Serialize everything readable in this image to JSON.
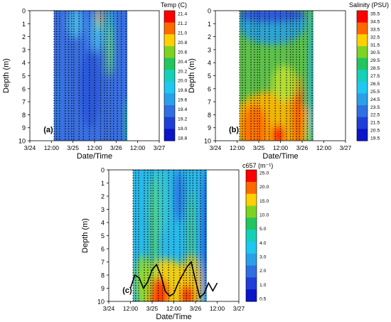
{
  "chart_data": [
    {
      "type": "heatmap",
      "panel_label": "(a)",
      "xlabel": "Date/Time",
      "ylabel": "Depth (m)",
      "x_ticks": [
        "3/24",
        "12:00",
        "3/25",
        "12:00",
        "3/26",
        "12:00",
        "3/27"
      ],
      "y_ticks": [
        "0",
        "1",
        "2",
        "3",
        "4",
        "5",
        "6",
        "7",
        "8",
        "9",
        "10"
      ],
      "ylim": [
        10,
        0
      ],
      "colorbar": {
        "title": "Temp (C)",
        "ticks": [
          "21.4",
          "21.2",
          "21.0",
          "20.8",
          "20.6",
          "20.4",
          "20.2",
          "20.0",
          "19.8",
          "19.6",
          "19.4",
          "19.2",
          "19.0",
          "18.8"
        ],
        "colors": [
          "#ff0000",
          "#ff6a00",
          "#ffd000",
          "#7ed321",
          "#22c55e",
          "#15d0b8",
          "#1ec8f0",
          "#2aa0ea",
          "#2f6fe0",
          "#1f3fd8",
          "#0a14c8"
        ]
      },
      "field": {
        "base_color": "#3a6fe0",
        "patches": [
          {
            "day": 1.55,
            "depth": 1.6,
            "rx": 0.16,
            "ry": 1.6,
            "color": "#45b4e8"
          },
          {
            "day": 1.62,
            "depth": 0.6,
            "rx": 0.07,
            "ry": 0.9,
            "color": "#9be06a"
          },
          {
            "day": 1.62,
            "depth": 0.4,
            "rx": 0.035,
            "ry": 0.5,
            "color": "#ff3a00"
          },
          {
            "day": 1.85,
            "depth": 2.4,
            "rx": 0.1,
            "ry": 2.6,
            "color": "#2fd0c0"
          },
          {
            "day": 1.85,
            "depth": 3.2,
            "rx": 0.05,
            "ry": 2.0,
            "color": "#7ed85a"
          },
          {
            "day": 1.05,
            "depth": 1.0,
            "rx": 0.18,
            "ry": 1.2,
            "color": "#4ab8ea"
          },
          {
            "day": 2.3,
            "depth": 8.8,
            "rx": 0.08,
            "ry": 2.2,
            "color": "#22c080"
          },
          {
            "day": 0.62,
            "depth": 7.0,
            "rx": 0.08,
            "ry": 2.6,
            "color": "#2f7fe0"
          },
          {
            "day": 1.4,
            "depth": 6.0,
            "rx": 0.25,
            "ry": 3.0,
            "color": "#2a55d8"
          }
        ],
        "samples": [
          0.56,
          0.62,
          0.69,
          0.82,
          0.9,
          0.97,
          1.02,
          1.14,
          1.24,
          1.38,
          1.5,
          1.64,
          1.73,
          1.79,
          1.87,
          1.94,
          2.03,
          2.12,
          2.23
        ]
      }
    },
    {
      "type": "heatmap",
      "panel_label": "(b)",
      "xlabel": "Date/Time",
      "ylabel": "Depth (m)",
      "x_ticks": [
        "3/24",
        "12:00",
        "3/25",
        "12:00",
        "3/26",
        "12:00",
        "3/27"
      ],
      "y_ticks": [
        "0",
        "1",
        "2",
        "3",
        "4",
        "5",
        "6",
        "7",
        "8",
        "9",
        "10"
      ],
      "ylim": [
        10,
        0
      ],
      "colorbar": {
        "title": "Salinity (PSU)",
        "ticks": [
          "35.5",
          "34.5",
          "33.5",
          "32.5",
          "31.5",
          "30.5",
          "29.5",
          "28.5",
          "27.5",
          "26.5",
          "25.5",
          "24.5",
          "23.5",
          "22.5",
          "21.5",
          "20.5",
          "19.5"
        ],
        "colors": [
          "#ff0000",
          "#ff6a00",
          "#ffd000",
          "#7ed321",
          "#22c55e",
          "#15d0b8",
          "#1ec8f0",
          "#2aa0ea",
          "#2f6fe0",
          "#1f3fd8",
          "#0a14c8"
        ]
      },
      "field": {
        "base_color": "#5ec04a",
        "patches": [
          {
            "day": 1.3,
            "depth": 1.0,
            "rx": 0.8,
            "ry": 1.6,
            "color": "#2aa0e0"
          },
          {
            "day": 1.3,
            "depth": 0.3,
            "rx": 0.8,
            "ry": 0.6,
            "color": "#3050d8"
          },
          {
            "day": 1.3,
            "depth": 8.6,
            "rx": 0.9,
            "ry": 2.4,
            "color": "#ffb400"
          },
          {
            "day": 0.9,
            "depth": 9.2,
            "rx": 0.3,
            "ry": 2.0,
            "color": "#ff6a00"
          },
          {
            "day": 1.9,
            "depth": 8.0,
            "rx": 0.12,
            "ry": 3.0,
            "color": "#ff5000"
          },
          {
            "day": 1.45,
            "depth": 9.6,
            "rx": 0.15,
            "ry": 0.8,
            "color": "#ff0000"
          },
          {
            "day": 2.25,
            "depth": 5.0,
            "rx": 0.08,
            "ry": 5.5,
            "color": "#1ea8f0"
          },
          {
            "day": 2.13,
            "depth": 9.2,
            "rx": 0.05,
            "ry": 1.4,
            "color": "#7ed321"
          },
          {
            "day": 1.6,
            "depth": 5.6,
            "rx": 0.3,
            "ry": 1.4,
            "color": "#b8e030"
          }
        ],
        "samples": [
          0.56,
          0.62,
          0.69,
          0.82,
          0.9,
          0.97,
          1.02,
          1.14,
          1.24,
          1.38,
          1.5,
          1.64,
          1.73,
          1.79,
          1.87,
          1.94,
          2.03,
          2.12,
          2.23
        ]
      }
    },
    {
      "type": "heatmap",
      "panel_label": "(c)",
      "xlabel": "Date/Time",
      "ylabel": "Depth (m)",
      "x_ticks": [
        "3/24",
        "12:00",
        "3/25",
        "12:00",
        "3/26",
        "12:00",
        "3/27"
      ],
      "y_ticks": [
        "0",
        "1",
        "2",
        "3",
        "4",
        "5",
        "6",
        "7",
        "8",
        "9",
        "10"
      ],
      "ylim": [
        10,
        0
      ],
      "colorbar": {
        "title": "c657 (m⁻¹)",
        "ticks": [
          "25.0",
          "20.0",
          "15.0",
          "10.0",
          "5.0",
          "4.0",
          "3.0",
          "2.0",
          "1.0",
          "0.5"
        ],
        "colors": [
          "#ff0000",
          "#ff6a00",
          "#ffd000",
          "#7ed321",
          "#22c55e",
          "#15d0b8",
          "#1ec8f0",
          "#2aa0ea",
          "#2f6fe0",
          "#1f3fd8",
          "#0a14c8"
        ]
      },
      "field": {
        "base_color": "#2ab8e8",
        "patches": [
          {
            "day": 1.15,
            "depth": 2.5,
            "rx": 0.25,
            "ry": 2.5,
            "color": "#35c8d0"
          },
          {
            "day": 1.62,
            "depth": 2.0,
            "rx": 0.12,
            "ry": 2.0,
            "color": "#2a70e0"
          },
          {
            "day": 2.25,
            "depth": 5.0,
            "rx": 0.1,
            "ry": 5.2,
            "color": "#2450d8"
          },
          {
            "day": 1.3,
            "depth": 9.0,
            "rx": 0.6,
            "ry": 2.2,
            "color": "#ffd000"
          },
          {
            "day": 1.15,
            "depth": 9.4,
            "rx": 0.25,
            "ry": 1.2,
            "color": "#ff3000"
          },
          {
            "day": 0.8,
            "depth": 8.5,
            "rx": 0.2,
            "ry": 2.0,
            "color": "#8ed830"
          },
          {
            "day": 1.9,
            "depth": 8.8,
            "rx": 0.25,
            "ry": 2.4,
            "color": "#ffc000"
          },
          {
            "day": 1.8,
            "depth": 9.6,
            "rx": 0.15,
            "ry": 0.8,
            "color": "#ff1000"
          },
          {
            "day": 1.05,
            "depth": 4.5,
            "rx": 0.08,
            "ry": 4.0,
            "color": "#5ad050"
          },
          {
            "day": 1.9,
            "depth": 5.0,
            "rx": 0.05,
            "ry": 3.5,
            "color": "#5ad050"
          }
        ],
        "samples": [
          0.56,
          0.62,
          0.69,
          0.82,
          0.9,
          0.97,
          1.02,
          1.14,
          1.24,
          1.38,
          1.5,
          1.64,
          1.73,
          1.79,
          1.87,
          1.94,
          2.03,
          2.12,
          2.23
        ],
        "line_color": "#000000",
        "line_days": [
          0.5,
          0.6,
          0.7,
          0.8,
          0.9,
          1.0,
          1.1,
          1.2,
          1.3,
          1.4,
          1.5,
          1.6,
          1.7,
          1.8,
          1.9,
          2.0,
          2.1,
          2.2,
          2.3,
          2.4,
          2.5
        ],
        "line_depths": [
          9.0,
          8.0,
          8.2,
          9.0,
          8.5,
          7.6,
          7.2,
          8.0,
          9.2,
          9.6,
          9.4,
          8.6,
          8.0,
          7.4,
          7.0,
          8.4,
          9.7,
          9.4,
          8.6,
          9.2,
          8.6
        ]
      }
    }
  ]
}
